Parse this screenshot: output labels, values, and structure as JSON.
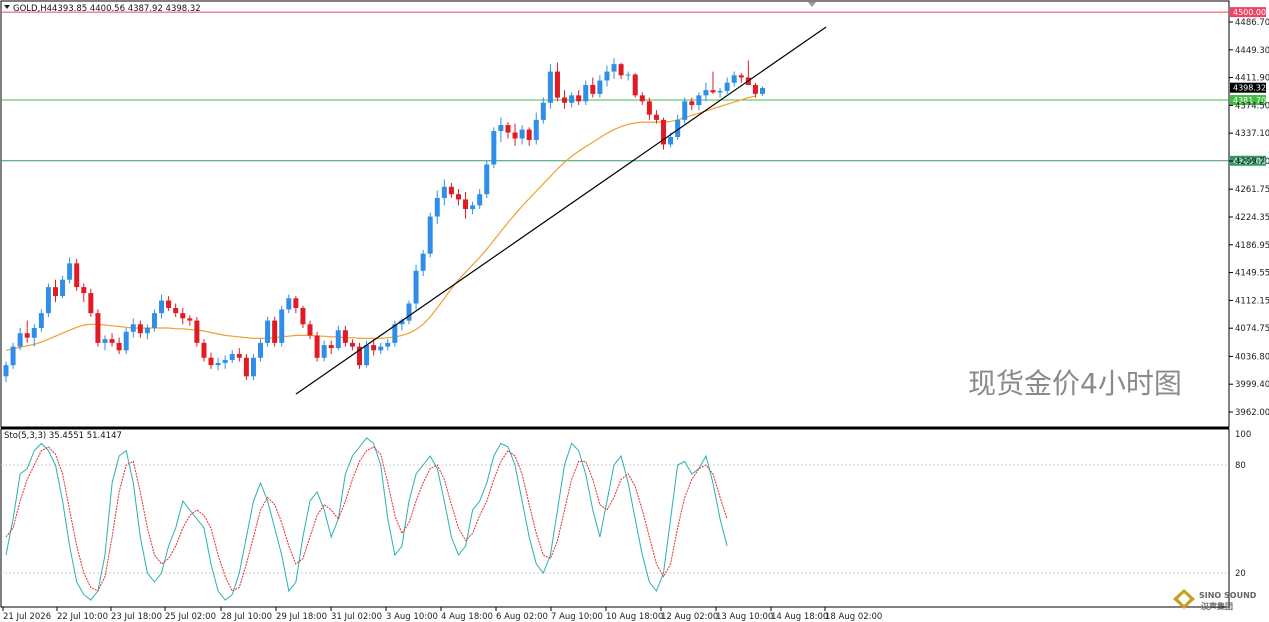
{
  "chart_data": {
    "type": "candlestick",
    "symbol_header": {
      "symbol": "GOLD,H4",
      "ohlc": "4393.85 4400.56 4387.92 4398.32"
    },
    "watermark": "现货金价4小时图",
    "price_axis": {
      "ticks": [
        "4486.70",
        "4449.30",
        "4411.90",
        "4374.50",
        "4337.10",
        "4299.70",
        "4261.75",
        "4224.35",
        "4186.95",
        "4149.55",
        "4112.15",
        "4074.75",
        "4036.80",
        "3999.40",
        "3962.00"
      ],
      "range": [
        3945,
        4515
      ]
    },
    "levels": [
      {
        "price": 4500.0,
        "label": "4500.00",
        "color": "#ee4466"
      },
      {
        "price": 4381.7,
        "label": "4381.70",
        "color": "#44bb44"
      },
      {
        "price": 4300.0,
        "label": "4300.00",
        "color": "#339966"
      }
    ],
    "current_price": {
      "price": 4398.32,
      "label": "4398.32"
    },
    "time_axis": [
      "21 Jul 2026",
      "22 Jul 10:00",
      "23 Jul 18:00",
      "25 Jul 02:00",
      "28 Jul 10:00",
      "29 Jul 18:00",
      "31 Jul 02:00",
      "3 Aug 10:00",
      "4 Aug 18:00",
      "6 Aug 02:00",
      "7 Aug 10:00",
      "10 Aug 18:00",
      "12 Aug 02:00",
      "13 Aug 10:00",
      "14 Aug 18:00",
      "18 Aug 02:00"
    ],
    "candles": [
      [
        4010,
        4030,
        4002,
        4025
      ],
      [
        4025,
        4055,
        4020,
        4050
      ],
      [
        4050,
        4075,
        4045,
        4068
      ],
      [
        4068,
        4085,
        4055,
        4062
      ],
      [
        4062,
        4080,
        4050,
        4075
      ],
      [
        4075,
        4100,
        4070,
        4095
      ],
      [
        4095,
        4135,
        4090,
        4130
      ],
      [
        4130,
        4140,
        4110,
        4118
      ],
      [
        4118,
        4145,
        4115,
        4140
      ],
      [
        4140,
        4170,
        4135,
        4162
      ],
      [
        4162,
        4168,
        4125,
        4130
      ],
      [
        4130,
        4135,
        4110,
        4122
      ],
      [
        4122,
        4128,
        4090,
        4095
      ],
      [
        4095,
        4100,
        4050,
        4055
      ],
      [
        4055,
        4065,
        4045,
        4060
      ],
      [
        4060,
        4068,
        4050,
        4055
      ],
      [
        4055,
        4062,
        4040,
        4045
      ],
      [
        4045,
        4075,
        4040,
        4070
      ],
      [
        4070,
        4088,
        4062,
        4080
      ],
      [
        4080,
        4085,
        4062,
        4068
      ],
      [
        4068,
        4080,
        4060,
        4075
      ],
      [
        4075,
        4100,
        4070,
        4095
      ],
      [
        4095,
        4120,
        4088,
        4112
      ],
      [
        4112,
        4118,
        4098,
        4102
      ],
      [
        4102,
        4108,
        4090,
        4095
      ],
      [
        4095,
        4102,
        4080,
        4088
      ],
      [
        4088,
        4092,
        4078,
        4085
      ],
      [
        4085,
        4090,
        4050,
        4055
      ],
      [
        4055,
        4060,
        4030,
        4035
      ],
      [
        4035,
        4042,
        4020,
        4025
      ],
      [
        4025,
        4035,
        4018,
        4028
      ],
      [
        4028,
        4038,
        4020,
        4032
      ],
      [
        4032,
        4045,
        4028,
        4040
      ],
      [
        4040,
        4048,
        4030,
        4035
      ],
      [
        4035,
        4040,
        4005,
        4010
      ],
      [
        4010,
        4040,
        4005,
        4035
      ],
      [
        4035,
        4060,
        4030,
        4055
      ],
      [
        4055,
        4090,
        4050,
        4085
      ],
      [
        4085,
        4090,
        4050,
        4055
      ],
      [
        4055,
        4105,
        4050,
        4100
      ],
      [
        4100,
        4120,
        4095,
        4115
      ],
      [
        4115,
        4118,
        4095,
        4102
      ],
      [
        4102,
        4105,
        4075,
        4080
      ],
      [
        4080,
        4085,
        4060,
        4065
      ],
      [
        4065,
        4070,
        4030,
        4035
      ],
      [
        4035,
        4058,
        4030,
        4052
      ],
      [
        4052,
        4058,
        4040,
        4048
      ],
      [
        4048,
        4078,
        4045,
        4072
      ],
      [
        4072,
        4078,
        4050,
        4055
      ],
      [
        4055,
        4060,
        4045,
        4050
      ],
      [
        4050,
        4055,
        4020,
        4025
      ],
      [
        4025,
        4058,
        4022,
        4052
      ],
      [
        4052,
        4060,
        4038,
        4045
      ],
      [
        4045,
        4055,
        4040,
        4050
      ],
      [
        4050,
        4060,
        4045,
        4055
      ],
      [
        4055,
        4085,
        4050,
        4080
      ],
      [
        4080,
        4088,
        4072,
        4085
      ],
      [
        4085,
        4112,
        4080,
        4108
      ],
      [
        4108,
        4160,
        4100,
        4152
      ],
      [
        4152,
        4180,
        4145,
        4175
      ],
      [
        4175,
        4230,
        4170,
        4225
      ],
      [
        4225,
        4260,
        4215,
        4250
      ],
      [
        4250,
        4275,
        4240,
        4265
      ],
      [
        4265,
        4270,
        4250,
        4255
      ],
      [
        4255,
        4262,
        4240,
        4248
      ],
      [
        4248,
        4258,
        4222,
        4235
      ],
      [
        4235,
        4245,
        4228,
        4240
      ],
      [
        4240,
        4262,
        4235,
        4255
      ],
      [
        4255,
        4300,
        4250,
        4295
      ],
      [
        4295,
        4345,
        4290,
        4340
      ],
      [
        4340,
        4358,
        4325,
        4348
      ],
      [
        4348,
        4352,
        4330,
        4338
      ],
      [
        4338,
        4350,
        4320,
        4330
      ],
      [
        4330,
        4348,
        4322,
        4342
      ],
      [
        4342,
        4345,
        4320,
        4328
      ],
      [
        4328,
        4365,
        4322,
        4355
      ],
      [
        4355,
        4385,
        4350,
        4378
      ],
      [
        4378,
        4430,
        4370,
        4420
      ],
      [
        4420,
        4432,
        4380,
        4385
      ],
      [
        4385,
        4395,
        4370,
        4378
      ],
      [
        4378,
        4392,
        4372,
        4388
      ],
      [
        4388,
        4395,
        4375,
        4380
      ],
      [
        4380,
        4408,
        4375,
        4402
      ],
      [
        4402,
        4412,
        4385,
        4390
      ],
      [
        4390,
        4415,
        4385,
        4408
      ],
      [
        4408,
        4428,
        4400,
        4420
      ],
      [
        4420,
        4438,
        4410,
        4430
      ],
      [
        4430,
        4432,
        4410,
        4415
      ],
      [
        4415,
        4420,
        4408,
        4416
      ],
      [
        4416,
        4418,
        4385,
        4388
      ],
      [
        4388,
        4392,
        4375,
        4380
      ],
      [
        4380,
        4385,
        4355,
        4362
      ],
      [
        4362,
        4368,
        4350,
        4355
      ],
      [
        4355,
        4358,
        4315,
        4322
      ],
      [
        4322,
        4338,
        4318,
        4332
      ],
      [
        4332,
        4362,
        4328,
        4355
      ],
      [
        4355,
        4385,
        4350,
        4380
      ],
      [
        4380,
        4385,
        4368,
        4375
      ],
      [
        4375,
        4392,
        4368,
        4388
      ],
      [
        4388,
        4405,
        4380,
        4395
      ],
      [
        4395,
        4420,
        4390,
        4392
      ],
      [
        4392,
        4398,
        4385,
        4394
      ],
      [
        4394,
        4412,
        4390,
        4405
      ],
      [
        4405,
        4420,
        4400,
        4415
      ],
      [
        4415,
        4418,
        4405,
        4412
      ],
      [
        4412,
        4435,
        4405,
        4402
      ],
      [
        4402,
        4405,
        4385,
        4390
      ],
      [
        4390,
        4400,
        4387,
        4398
      ]
    ],
    "moving_average": {
      "color": "#f0a030",
      "values": [
        4045,
        4047,
        4049,
        4051,
        4053,
        4056,
        4060,
        4064,
        4068,
        4072,
        4076,
        4079,
        4080,
        4080,
        4079,
        4078,
        4077,
        4076,
        4075,
        4075,
        4075,
        4075,
        4075,
        4075,
        4074,
        4074,
        4073,
        4072,
        4071,
        4069,
        4067,
        4065,
        4064,
        4063,
        4062,
        4061,
        4061,
        4061,
        4062,
        4063,
        4064,
        4065,
        4065,
        4065,
        4064,
        4064,
        4063,
        4063,
        4062,
        4062,
        4061,
        4061,
        4061,
        4061,
        4062,
        4063,
        4065,
        4068,
        4073,
        4080,
        4090,
        4102,
        4115,
        4128,
        4140,
        4150,
        4160,
        4170,
        4181,
        4193,
        4205,
        4217,
        4228,
        4239,
        4249,
        4259,
        4269,
        4279,
        4289,
        4298,
        4306,
        4313,
        4319,
        4325,
        4331,
        4337,
        4342,
        4346,
        4349,
        4351,
        4352,
        4352,
        4352,
        4352,
        4353,
        4355,
        4358,
        4361,
        4364,
        4367,
        4370,
        4373,
        4376,
        4379,
        4382,
        4385,
        4387
      ]
    },
    "trendline": {
      "start_index": 41,
      "start_price": 3986,
      "end_index": 116,
      "end_price": 4480
    },
    "oscillator": {
      "label": "Sto(5,3,3) 35.4551 51.4147",
      "levels_labels": [
        "100",
        "80",
        "20"
      ],
      "range": [
        0,
        100
      ],
      "k_color": "#2ab0b0",
      "d_color": "#e03030",
      "k": [
        30,
        50,
        75,
        78,
        88,
        92,
        88,
        80,
        60,
        35,
        15,
        8,
        5,
        10,
        30,
        70,
        85,
        88,
        70,
        40,
        20,
        15,
        20,
        35,
        45,
        60,
        55,
        50,
        45,
        25,
        10,
        5,
        8,
        20,
        40,
        60,
        70,
        60,
        45,
        30,
        10,
        15,
        40,
        60,
        65,
        55,
        40,
        50,
        75,
        85,
        90,
        95,
        92,
        80,
        50,
        30,
        35,
        60,
        75,
        80,
        85,
        78,
        60,
        40,
        30,
        35,
        55,
        60,
        70,
        85,
        92,
        90,
        80,
        60,
        40,
        25,
        20,
        30,
        55,
        80,
        92,
        88,
        75,
        55,
        40,
        60,
        80,
        85,
        70,
        50,
        30,
        15,
        10,
        20,
        50,
        80,
        82,
        75,
        78,
        85,
        70,
        50,
        35
      ],
      "d": [
        40,
        45,
        60,
        72,
        80,
        88,
        90,
        86,
        75,
        55,
        35,
        20,
        12,
        10,
        18,
        40,
        65,
        80,
        82,
        65,
        45,
        30,
        25,
        28,
        35,
        45,
        52,
        55,
        52,
        45,
        30,
        18,
        10,
        12,
        25,
        40,
        55,
        62,
        58,
        48,
        35,
        25,
        28,
        40,
        52,
        58,
        55,
        50,
        60,
        72,
        82,
        88,
        90,
        86,
        70,
        52,
        42,
        48,
        60,
        70,
        78,
        80,
        72,
        58,
        45,
        38,
        42,
        52,
        60,
        72,
        82,
        88,
        85,
        75,
        58,
        42,
        30,
        28,
        38,
        55,
        72,
        82,
        82,
        72,
        58,
        55,
        62,
        72,
        75,
        68,
        55,
        40,
        25,
        18,
        25,
        45,
        62,
        72,
        78,
        80,
        75,
        62,
        50
      ]
    }
  },
  "logo": {
    "line1": "SINO SOUND",
    "line2": "汉声集团"
  }
}
